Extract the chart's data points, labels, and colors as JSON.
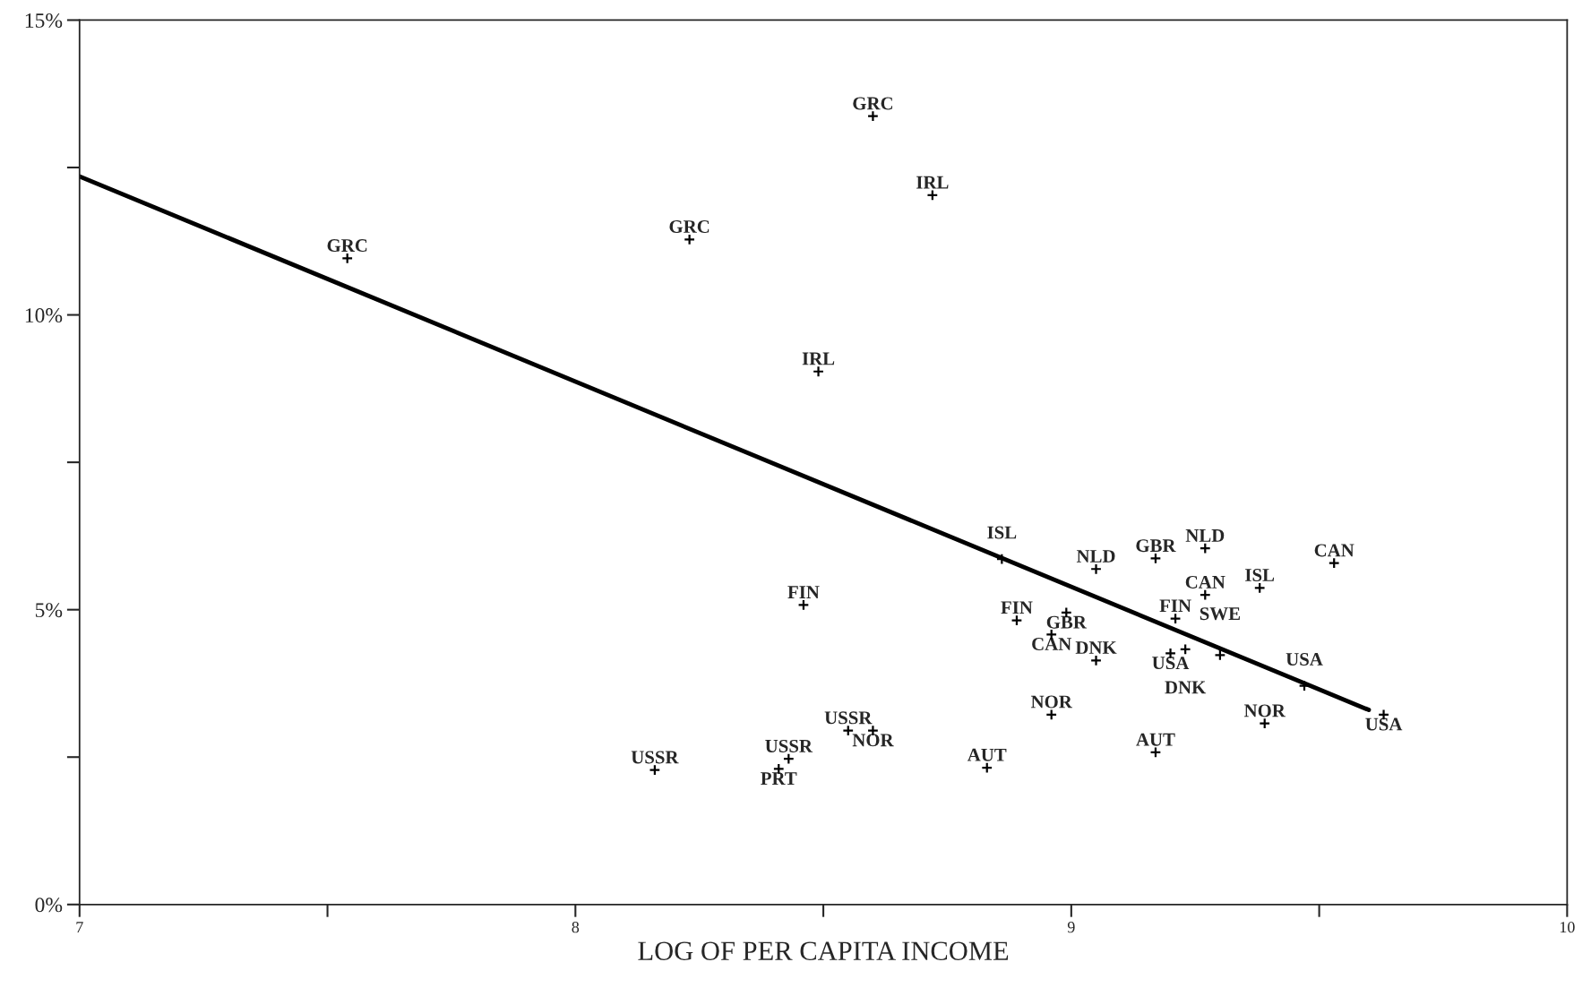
{
  "chart_data": {
    "type": "scatter",
    "xlabel": "LOG OF PER CAPITA INCOME",
    "xlim": [
      7,
      10
    ],
    "ylim": [
      0,
      15
    ],
    "xticks": [
      7,
      {
        "value": 7.5,
        "label": null
      },
      8,
      {
        "value": 8.5,
        "label": null
      },
      9,
      {
        "value": 9.5,
        "label": null
      },
      10
    ],
    "yticks": [
      {
        "value": 0,
        "label": "0%"
      },
      {
        "value": 2.5,
        "label": null
      },
      {
        "value": 5,
        "label": "5%"
      },
      {
        "value": 7.5,
        "label": null
      },
      {
        "value": 10,
        "label": "10%"
      },
      {
        "value": 12.5,
        "label": null
      },
      {
        "value": 15,
        "label": "15%"
      }
    ],
    "grid": false,
    "legend": false,
    "series": [
      {
        "marker": "cross",
        "color": "#000000",
        "x": [
          7.54,
          8.23,
          8.6,
          8.72,
          8.49,
          8.46,
          8.16,
          8.43,
          8.41,
          8.55,
          8.6,
          8.83,
          8.96,
          8.86,
          9.05,
          9.17,
          9.27,
          9.53,
          9.27,
          9.38,
          8.89,
          8.99,
          8.96,
          9.05,
          9.21,
          9.2,
          9.23,
          9.3,
          9.47,
          9.63,
          9.39,
          9.17
        ],
        "values": [
          10.96,
          11.28,
          13.37,
          12.03,
          9.04,
          5.08,
          2.28,
          2.47,
          2.3,
          2.95,
          2.95,
          2.32,
          3.22,
          5.86,
          5.69,
          5.87,
          6.04,
          5.79,
          5.25,
          5.37,
          4.82,
          4.95,
          4.58,
          4.14,
          4.85,
          4.26,
          4.33,
          4.23,
          3.71,
          3.22,
          3.07,
          2.58
        ]
      },
      {
        "type": "line",
        "color": "#000000",
        "line_style": "solid",
        "x": [
          7,
          9.6
        ],
        "values": [
          12.35,
          3.3
        ]
      }
    ],
    "annotations": [
      {
        "text": "GRC",
        "x": 7.54,
        "y": 10.96
      },
      {
        "text": "GRC",
        "x": 8.23,
        "y": 11.28
      },
      {
        "text": "GRC",
        "x": 8.6,
        "y": 13.37
      },
      {
        "text": "IRL",
        "x": 8.72,
        "y": 12.03
      },
      {
        "text": "IRL",
        "x": 8.49,
        "y": 9.04
      },
      {
        "text": "FIN",
        "x": 8.46,
        "y": 5.08
      },
      {
        "text": "USSR",
        "x": 8.16,
        "y": 2.28
      },
      {
        "text": "USSR",
        "x": 8.43,
        "y": 2.47
      },
      {
        "text": "PRT",
        "x": 8.41,
        "y": 2.3
      },
      {
        "text": "USSR",
        "x": 8.55,
        "y": 2.95
      },
      {
        "text": "NOR",
        "x": 8.6,
        "y": 2.95
      },
      {
        "text": "AUT",
        "x": 8.83,
        "y": 2.32
      },
      {
        "text": "NOR",
        "x": 8.96,
        "y": 3.22
      },
      {
        "text": "ISL",
        "x": 8.86,
        "y": 5.86
      },
      {
        "text": "NLD",
        "x": 9.05,
        "y": 5.69
      },
      {
        "text": "GBR",
        "x": 9.17,
        "y": 5.87
      },
      {
        "text": "NLD",
        "x": 9.27,
        "y": 6.04
      },
      {
        "text": "CAN",
        "x": 9.53,
        "y": 5.79
      },
      {
        "text": "CAN",
        "x": 9.27,
        "y": 5.25
      },
      {
        "text": "ISL",
        "x": 9.38,
        "y": 5.37
      },
      {
        "text": "FIN",
        "x": 8.89,
        "y": 4.82
      },
      {
        "text": "GBR",
        "x": 8.99,
        "y": 4.95
      },
      {
        "text": "CAN",
        "x": 8.96,
        "y": 4.58
      },
      {
        "text": "DNK",
        "x": 9.05,
        "y": 4.14
      },
      {
        "text": "FIN",
        "x": 9.21,
        "y": 4.85
      },
      {
        "text": "USA",
        "x": 9.2,
        "y": 4.26
      },
      {
        "text": "DNK",
        "x": 9.23,
        "y": 4.33
      },
      {
        "text": "SWE",
        "x": 9.3,
        "y": 4.23
      },
      {
        "text": "USA",
        "x": 9.47,
        "y": 3.71
      },
      {
        "text": "USA",
        "x": 9.63,
        "y": 3.22
      },
      {
        "text": "NOR",
        "x": 9.39,
        "y": 3.07
      },
      {
        "text": "AUT",
        "x": 9.17,
        "y": 2.58
      }
    ]
  }
}
